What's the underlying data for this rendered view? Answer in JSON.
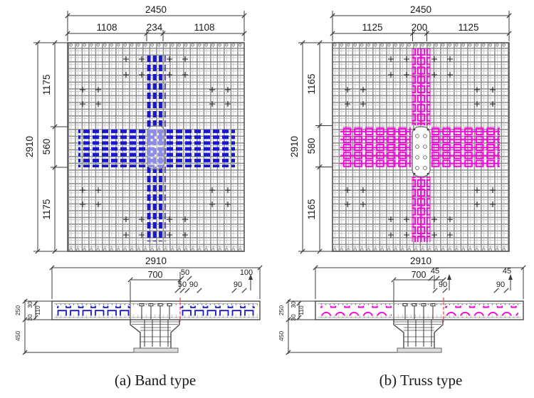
{
  "figure": {
    "caption_a": "(a) Band type",
    "caption_b": "(b) Truss type"
  },
  "colors": {
    "band": "#1a18cf",
    "truss": "#f400d8",
    "grid": "#8c8c8c",
    "dim": "#3a3a3a",
    "cut": "#ff4040"
  },
  "band_panel": {
    "plan": {
      "width_total": "2450",
      "w_seg_left": "1108",
      "w_seg_mid": "234",
      "w_seg_right": "1108",
      "height_total": "2910",
      "h_seg_top": "1175",
      "h_seg_mid": "560",
      "h_seg_bottom": "1175",
      "bottom_width": "2910"
    },
    "section": {
      "capital_width": "700",
      "off_top": "50",
      "off_a": "50",
      "off_b": "90",
      "edge_top": "100",
      "edge_b": "90",
      "slab_depth": "250",
      "cover_top": "30",
      "band_depth": "110",
      "cover_bot": "30",
      "column_height": "450"
    }
  },
  "truss_panel": {
    "plan": {
      "width_total": "2450",
      "w_seg_left": "1125",
      "w_seg_mid": "200",
      "w_seg_right": "1125",
      "height_total": "2910",
      "h_seg_top": "1165",
      "h_seg_mid": "580",
      "h_seg_bottom": "1165",
      "bottom_width": "2910"
    },
    "section": {
      "capital_width": "700",
      "off_top": "45",
      "off_b": "90",
      "edge_top": "45",
      "edge_b": "90",
      "slab_depth": "250",
      "cover_top": "30",
      "band_depth": "110",
      "cover_bot": "30",
      "column_height": "450"
    }
  }
}
